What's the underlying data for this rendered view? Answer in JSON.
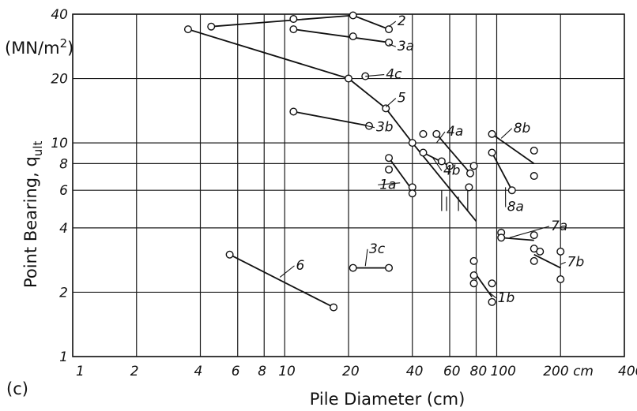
{
  "chart_data": {
    "type": "scatter",
    "xscale": "log",
    "yscale": "log",
    "xlim": [
      1,
      400
    ],
    "ylim": [
      1,
      40
    ],
    "grid": true,
    "xlabel": "Pile Diameter (cm)",
    "ylabel": "Point Bearing, q",
    "ylabel_sub": "ult",
    "yunit": "(MN/m",
    "yunit_sup": "2",
    "yunit_close": ")",
    "panel_label": "(c)",
    "x_ticks": [
      {
        "v": 1,
        "label": "1"
      },
      {
        "v": 2,
        "label": "2"
      },
      {
        "v": 4,
        "label": "4"
      },
      {
        "v": 6,
        "label": "6"
      },
      {
        "v": 8,
        "label": "8"
      },
      {
        "v": 10,
        "label": "10"
      },
      {
        "v": 20,
        "label": "20"
      },
      {
        "v": 40,
        "label": "40"
      },
      {
        "v": 60,
        "label": "60"
      },
      {
        "v": 80,
        "label": "80"
      },
      {
        "v": 100,
        "label": "100"
      },
      {
        "v": 200,
        "label": "200 cm"
      },
      {
        "v": 400,
        "label": "400"
      }
    ],
    "y_ticks": [
      {
        "v": 1,
        "label": "1"
      },
      {
        "v": 2,
        "label": "2"
      },
      {
        "v": 4,
        "label": "4"
      },
      {
        "v": 6,
        "label": "6"
      },
      {
        "v": 8,
        "label": "8"
      },
      {
        "v": 10,
        "label": "10"
      },
      {
        "v": 20,
        "label": "20"
      },
      {
        "v": 40,
        "label": "40"
      }
    ],
    "series": [
      {
        "name": "2",
        "line": [
          [
            4.5,
            35
          ],
          [
            21,
            39.5
          ],
          [
            31,
            34
          ]
        ],
        "points": [
          [
            4.5,
            35
          ],
          [
            11,
            38
          ],
          [
            21,
            39.5
          ],
          [
            31,
            34
          ]
        ],
        "label": {
          "text": "2",
          "at": [
            34,
            35.5
          ],
          "anchor": [
            31,
            35
          ]
        }
      },
      {
        "name": "3a",
        "line": [
          [
            11,
            34
          ],
          [
            31,
            29.5
          ]
        ],
        "points": [
          [
            11,
            34
          ],
          [
            21,
            31.5
          ],
          [
            31,
            29.5
          ]
        ],
        "label": {
          "text": "3a",
          "at": [
            34,
            27
          ],
          "anchor": [
            31,
            29
          ]
        }
      },
      {
        "name": "4c",
        "line": [
          [
            3.5,
            34
          ],
          [
            20,
            20
          ]
        ],
        "points": [
          [
            3.5,
            34
          ],
          [
            20,
            20
          ],
          [
            24,
            20.5
          ]
        ],
        "label": {
          "text": "4c",
          "at": [
            30,
            20
          ],
          "anchor": [
            24,
            20.5
          ]
        }
      },
      {
        "name": "5",
        "line": [
          [
            20,
            20
          ],
          [
            30,
            14.5
          ],
          [
            40,
            10
          ],
          [
            80,
            4.3
          ]
        ],
        "points": [
          [
            30,
            14.5
          ],
          [
            40,
            10
          ]
        ],
        "label": {
          "text": "5",
          "at": [
            34,
            15.5
          ],
          "anchor": [
            30,
            14.7
          ]
        }
      },
      {
        "name": "3b",
        "line": [
          [
            11,
            14
          ],
          [
            25,
            12
          ]
        ],
        "points": [
          [
            11,
            14
          ],
          [
            25,
            12
          ]
        ],
        "label": {
          "text": "3b",
          "at": [
            27,
            11.3
          ],
          "anchor": [
            22,
            12.3
          ]
        }
      },
      {
        "name": "4a",
        "line": [
          [
            52,
            11
          ],
          [
            75,
            7.2
          ]
        ],
        "points": [
          [
            45,
            11
          ],
          [
            52,
            11
          ],
          [
            75,
            7.2
          ]
        ],
        "label": {
          "text": "4a",
          "at": [
            58,
            10.8
          ],
          "anchor": [
            52,
            10
          ]
        }
      },
      {
        "name": "4b",
        "line": [
          [
            45,
            9
          ],
          [
            60,
            7.8
          ]
        ],
        "points": [
          [
            45,
            9
          ],
          [
            55,
            8.2
          ],
          [
            60,
            7.8
          ]
        ],
        "label": {
          "text": "4b",
          "at": [
            56,
            7.1
          ],
          "anchor": [
            50,
            8.5
          ]
        }
      },
      {
        "name": "1a",
        "line": [
          [
            31,
            8.5
          ],
          [
            40,
            6
          ]
        ],
        "points": [
          [
            31,
            8.5
          ],
          [
            31,
            7.5
          ],
          [
            40,
            6.2
          ],
          [
            40,
            5.8
          ]
        ],
        "label": {
          "text": "1a",
          "at": [
            28,
            6.1
          ],
          "anchor": [
            35,
            6.5
          ]
        }
      },
      {
        "name": "8b",
        "line": [
          [
            95,
            11
          ],
          [
            150,
            8
          ]
        ],
        "points": [
          [
            95,
            11
          ],
          [
            150,
            9.2
          ],
          [
            150,
            7
          ]
        ],
        "label": {
          "text": "8b",
          "at": [
            120,
            11.2
          ],
          "anchor": [
            105,
            10.5
          ]
        }
      },
      {
        "name": "8a",
        "line": [
          [
            95,
            9
          ],
          [
            118,
            6
          ]
        ],
        "points": [
          [
            95,
            9
          ],
          [
            118,
            6
          ],
          [
            78,
            7.8
          ],
          [
            74,
            6.2
          ]
        ],
        "label": {
          "text": "8a",
          "at": [
            112,
            4.8
          ],
          "anchor": [
            110,
            6.2
          ]
        }
      },
      {
        "name": "7a",
        "line": [
          [
            105,
            3.6
          ],
          [
            150,
            3.5
          ]
        ],
        "points": [
          [
            105,
            3.8
          ],
          [
            105,
            3.6
          ],
          [
            150,
            3.7
          ],
          [
            150,
            3.2
          ],
          [
            150,
            2.8
          ],
          [
            160,
            3.1
          ]
        ],
        "label": {
          "text": "7a",
          "at": [
            180,
            3.9
          ],
          "anchor": [
            115,
            3.6
          ]
        }
      },
      {
        "name": "7b",
        "line": [
          [
            150,
            3.0
          ],
          [
            200,
            2.6
          ]
        ],
        "points": [
          [
            200,
            3.1
          ],
          [
            200,
            2.3
          ]
        ],
        "label": {
          "text": "7b",
          "at": [
            215,
            2.65
          ],
          "anchor": [
            200,
            2.7
          ]
        }
      },
      {
        "name": "1b",
        "line": [
          [
            78,
            2.5
          ],
          [
            95,
            1.9
          ]
        ],
        "points": [
          [
            78,
            2.8
          ],
          [
            78,
            2.4
          ],
          [
            78,
            2.2
          ],
          [
            95,
            2.2
          ],
          [
            95,
            1.8
          ]
        ],
        "label": {
          "text": "1b",
          "at": [
            101,
            1.8
          ],
          "anchor": [
            92,
            2.0
          ]
        }
      },
      {
        "name": "6",
        "line": [
          [
            5.5,
            3
          ],
          [
            17,
            1.7
          ]
        ],
        "points": [
          [
            5.5,
            3
          ],
          [
            17,
            1.7
          ]
        ],
        "label": {
          "text": "6",
          "at": [
            11.3,
            2.55
          ],
          "anchor": [
            9.5,
            2.35
          ]
        }
      },
      {
        "name": "3c",
        "line": [
          [
            21,
            2.6
          ],
          [
            31,
            2.6
          ]
        ],
        "points": [
          [
            21,
            2.6
          ],
          [
            31,
            2.6
          ]
        ],
        "label": {
          "text": "3c",
          "at": [
            25,
            3.05
          ],
          "anchor": [
            24,
            2.65
          ]
        }
      }
    ],
    "drop_lines": [
      [
        [
          55,
          6
        ],
        [
          55,
          4.8
        ]
      ],
      [
        [
          58,
          5.6
        ],
        [
          58,
          4.8
        ]
      ],
      [
        [
          73,
          6.3
        ],
        [
          73,
          4.8
        ]
      ],
      [
        [
          66,
          5.6
        ],
        [
          66,
          4.8
        ]
      ]
    ]
  }
}
